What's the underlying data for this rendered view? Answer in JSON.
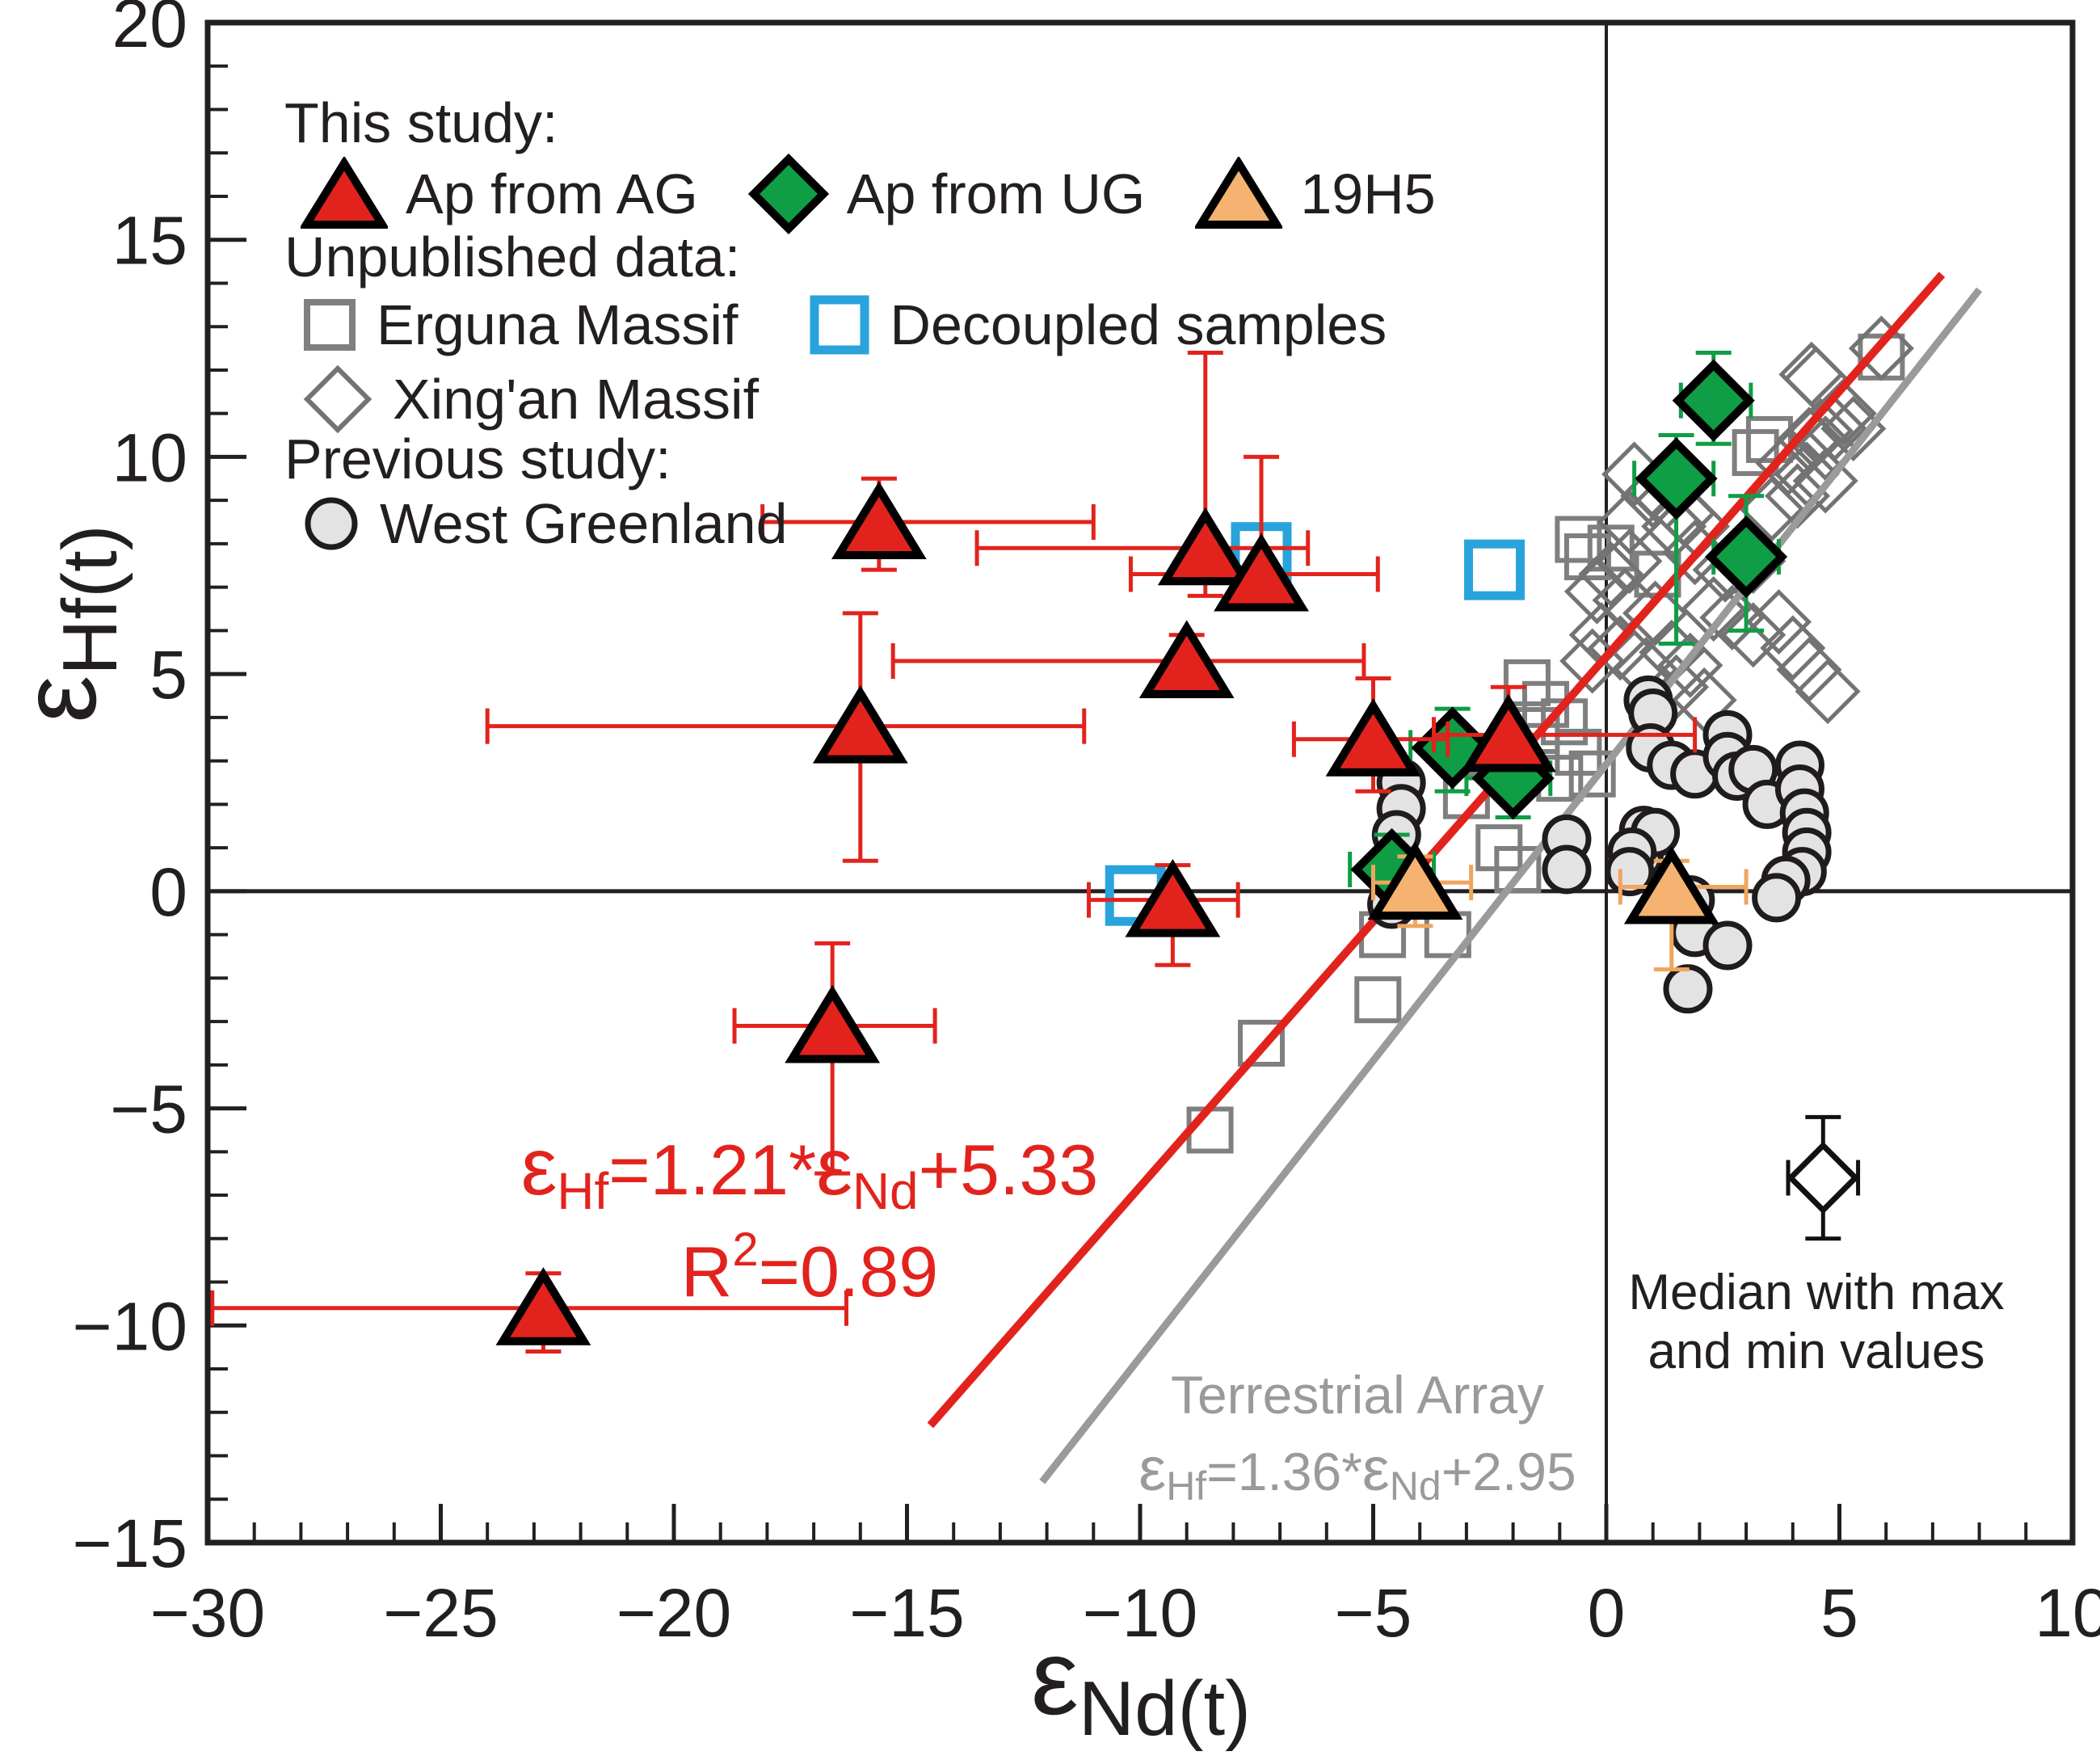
{
  "chart_data": {
    "type": "scatter",
    "axes": {
      "x": {
        "label_eps": "ε",
        "label_sub": "Nd(t)",
        "lim": [
          -30,
          10
        ],
        "ticks": [
          -30,
          -25,
          -20,
          -15,
          -10,
          -5,
          0,
          5,
          10
        ],
        "minor_step": 1
      },
      "y": {
        "label_eps": "ε",
        "label_sub": "Hf(t)",
        "lim": [
          -15,
          20
        ],
        "ticks": [
          -15,
          -10,
          -5,
          0,
          5,
          10,
          15,
          20
        ],
        "minor_step": 1
      },
      "zero_lines": true
    },
    "legend": {
      "section1": "This study:",
      "ap_ag": "Ap from AG",
      "ap_ug": "Ap from UG",
      "h19": "19H5",
      "section2": "Unpublished data:",
      "erguna": "Erguna Massif",
      "decoupled": "Decoupled samples",
      "xingan": "Xing'an Massif",
      "section3": "Previous study:",
      "west_greenland": "West Greenland"
    },
    "series": {
      "ap_ag": {
        "label": "Ap from AG",
        "marker": "triangle",
        "fill": "#e2231d",
        "stroke": "#000000",
        "stroke_width": 10,
        "error_color": "#e2231d",
        "points": [
          {
            "x": -22.8,
            "y": -9.6,
            "xlo": -29.9,
            "xhi": -16.3,
            "ylo": -10.6,
            "yhi": -8.8
          },
          {
            "x": -16.6,
            "y": -3.1,
            "xlo": -18.7,
            "xhi": -14.4,
            "ylo": -6.5,
            "yhi": -1.2
          },
          {
            "x": -15.6,
            "y": 8.5,
            "xlo": -18.1,
            "xhi": -11.0,
            "ylo": 7.4,
            "yhi": 9.5
          },
          {
            "x": -16.0,
            "y": 3.8,
            "xlo": -24.0,
            "xhi": -11.2,
            "ylo": 0.7,
            "yhi": 6.4
          },
          {
            "x": -8.6,
            "y": 7.9,
            "xlo": -13.5,
            "xhi": -6.4,
            "ylo": 6.8,
            "yhi": 12.4
          },
          {
            "x": -7.4,
            "y": 7.3,
            "xlo": -10.2,
            "xhi": -4.9,
            "ylo": 6.5,
            "yhi": 10.0
          },
          {
            "x": -9.0,
            "y": 5.3,
            "xlo": -15.3,
            "xhi": -5.2,
            "ylo": 4.8,
            "yhi": 5.9
          },
          {
            "x": -9.3,
            "y": -0.2,
            "xlo": -11.1,
            "xhi": -7.9,
            "ylo": -1.7,
            "yhi": 0.6
          },
          {
            "x": -5.0,
            "y": 3.5,
            "xlo": -6.7,
            "xhi": -3.4,
            "ylo": 2.3,
            "yhi": 4.9
          },
          {
            "x": -2.1,
            "y": 3.6,
            "xlo": -3.7,
            "xhi": 1.9,
            "ylo": 3.1,
            "yhi": 4.7
          }
        ]
      },
      "ap_ug": {
        "label": "Ap from UG",
        "marker": "diamond",
        "fill": "#0f9d45",
        "stroke": "#000000",
        "stroke_width": 10,
        "error_color": "#0f9d45",
        "points": [
          {
            "x": 2.3,
            "y": 11.3,
            "xlo": 1.6,
            "xhi": 3.1,
            "ylo": 10.3,
            "yhi": 12.4
          },
          {
            "x": 1.5,
            "y": 9.5,
            "xlo": 0.6,
            "xhi": 2.3,
            "ylo": 5.7,
            "yhi": 10.5
          },
          {
            "x": 3.0,
            "y": 7.7,
            "xlo": 2.3,
            "xhi": 3.7,
            "ylo": 6.0,
            "yhi": 9.1
          },
          {
            "x": -4.6,
            "y": 0.5,
            "xlo": -5.5,
            "xhi": -3.7,
            "ylo": -0.5,
            "yhi": 1.3
          },
          {
            "x": -3.3,
            "y": 3.3,
            "xlo": -4.2,
            "xhi": -2.5,
            "ylo": 2.3,
            "yhi": 4.2
          },
          {
            "x": -2.0,
            "y": 2.6,
            "xlo": -3.0,
            "xhi": -1.2,
            "ylo": 1.7,
            "yhi": 3.4
          }
        ]
      },
      "h19": {
        "label": "19H5",
        "marker": "triangle",
        "fill": "#f5b271",
        "stroke": "#000000",
        "stroke_width": 10,
        "error_color": "#f0a55e",
        "points": [
          {
            "x": -4.1,
            "y": 0.2,
            "xlo": -5.0,
            "xhi": -2.9,
            "ylo": -0.8,
            "yhi": 0.8
          },
          {
            "x": 1.4,
            "y": 0.1,
            "xlo": 0.3,
            "xhi": 3.0,
            "ylo": -1.8,
            "yhi": 0.7
          }
        ]
      },
      "erguna": {
        "label": "Erguna Massif",
        "marker": "square",
        "fill": "none",
        "stroke": "#7f7f7f",
        "stroke_width": 6,
        "points": [
          [
            -8.5,
            -5.5
          ],
          [
            -7.4,
            -3.5
          ],
          [
            -4.9,
            -2.5
          ],
          [
            -4.8,
            -1.0
          ],
          [
            -3.4,
            -1.0
          ],
          [
            -3.0,
            2.2
          ],
          [
            -2.3,
            1.0
          ],
          [
            -1.9,
            0.5
          ],
          [
            -1.7,
            4.8
          ],
          [
            -1.5,
            3.7
          ],
          [
            -1.3,
            4.3
          ],
          [
            -1.0,
            2.6
          ],
          [
            -0.9,
            3.9
          ],
          [
            -0.6,
            3.2
          ],
          [
            -0.6,
            8.1
          ],
          [
            -0.4,
            7.7
          ],
          [
            -0.3,
            2.7
          ],
          [
            0.1,
            7.9
          ],
          [
            1.1,
            7.3
          ],
          [
            3.2,
            10.1
          ],
          [
            3.5,
            10.4
          ],
          [
            5.9,
            12.3
          ]
        ]
      },
      "decoupled": {
        "label": "Decoupled samples",
        "marker": "square",
        "fill": "none",
        "stroke": "#29a3dc",
        "stroke_width": 11,
        "points": [
          [
            -7.4,
            7.8
          ],
          [
            -2.4,
            7.4
          ],
          [
            -10.1,
            -0.1
          ]
        ]
      },
      "xingan": {
        "label": "Xing'an Massif",
        "marker": "diamond",
        "fill": "none",
        "stroke": "#737373",
        "stroke_width": 5,
        "points": [
          [
            -0.3,
            5.3
          ],
          [
            -0.2,
            6.9
          ],
          [
            -0.1,
            5.9
          ],
          [
            0.1,
            7.3
          ],
          [
            0.3,
            5.6
          ],
          [
            0.4,
            6.7
          ],
          [
            0.5,
            7.6
          ],
          [
            0.5,
            8.5
          ],
          [
            0.6,
            9.6
          ],
          [
            0.85,
            5.1
          ],
          [
            1.0,
            9.1
          ],
          [
            1.05,
            6.4
          ],
          [
            1.1,
            9.2
          ],
          [
            1.4,
            5.5
          ],
          [
            1.45,
            8.4
          ],
          [
            1.5,
            4.7
          ],
          [
            1.65,
            8.7
          ],
          [
            1.8,
            5.2
          ],
          [
            1.9,
            7.8
          ],
          [
            1.95,
            8.4
          ],
          [
            2.1,
            4.4
          ],
          [
            2.3,
            6.5
          ],
          [
            2.55,
            7.4
          ],
          [
            2.7,
            6.3
          ],
          [
            3.15,
            5.9
          ],
          [
            3.15,
            7.6
          ],
          [
            3.55,
            8.8
          ],
          [
            3.7,
            6.2
          ],
          [
            3.9,
            9.85
          ],
          [
            4.0,
            5.6
          ],
          [
            4.1,
            9.1
          ],
          [
            4.35,
            5.1
          ],
          [
            4.35,
            10.4
          ],
          [
            4.4,
            11.9
          ],
          [
            4.3,
            9.6
          ],
          [
            4.5,
            11.8
          ],
          [
            4.6,
            10.6
          ],
          [
            4.7,
            9.45
          ],
          [
            4.7,
            10.2
          ],
          [
            4.75,
            4.6
          ],
          [
            4.9,
            10.65
          ],
          [
            5.1,
            11.0
          ],
          [
            5.3,
            10.65
          ],
          [
            5.9,
            12.5
          ]
        ]
      },
      "west_greenland": {
        "label": "West Greenland",
        "marker": "circle",
        "fill": "#e3e3e3",
        "stroke": "#201c1d",
        "stroke_width": 7,
        "points": [
          [
            -4.4,
            2.5
          ],
          [
            -4.4,
            1.9
          ],
          [
            -4.5,
            1.3
          ],
          [
            -4.6,
            -0.3
          ],
          [
            -0.85,
            1.2
          ],
          [
            -0.85,
            0.5
          ],
          [
            0.7,
            0.8
          ],
          [
            0.9,
            4.4
          ],
          [
            1.0,
            4.1
          ],
          [
            0.95,
            3.3
          ],
          [
            1.4,
            2.9
          ],
          [
            0.8,
            1.4
          ],
          [
            1.05,
            1.35
          ],
          [
            0.55,
            0.9
          ],
          [
            0.5,
            0.45
          ],
          [
            1.9,
            2.7
          ],
          [
            2.6,
            3.6
          ],
          [
            2.6,
            3.1
          ],
          [
            2.8,
            2.65
          ],
          [
            3.15,
            2.8
          ],
          [
            3.45,
            2.0
          ],
          [
            4.15,
            2.9
          ],
          [
            4.15,
            2.35
          ],
          [
            4.25,
            1.8
          ],
          [
            4.3,
            1.35
          ],
          [
            4.3,
            0.9
          ],
          [
            4.2,
            0.45
          ],
          [
            3.85,
            0.25
          ],
          [
            3.65,
            -0.15
          ],
          [
            1.8,
            -0.2
          ],
          [
            1.9,
            -0.95
          ],
          [
            2.6,
            -1.25
          ],
          [
            1.75,
            -2.25
          ]
        ]
      }
    },
    "fit_lines": [
      {
        "name": "regression-line",
        "color": "#e2231d",
        "width": 10,
        "x1": -14.5,
        "y1": -12.3,
        "x2": 7.2,
        "y2": 14.2
      },
      {
        "name": "terrestrial-array-line",
        "color": "#9a9a9a",
        "width": 9,
        "x1": -12.1,
        "y1": -13.6,
        "x2": 8.0,
        "y2": 13.85
      }
    ],
    "annotations": {
      "regression": {
        "eps1": "ε",
        "sub1": "Hf",
        "mid": "=1.21*",
        "eps2": "ε",
        "sub2": "Nd",
        "tail": "+5.33",
        "r2_base": "R",
        "r2_sup": "2",
        "r2_rest": "=0.89",
        "color": "#e2231d"
      },
      "terrestrial": {
        "title": "Terrestrial Array",
        "eps1": "ε",
        "sub1": "Hf",
        "mid": "=1.36*",
        "eps2": "ε",
        "sub2": "Nd",
        "tail": "+2.95",
        "color": "#9a9a9a"
      },
      "median_note": {
        "line1": "Median with max",
        "line2": "and min values",
        "symbol": {
          "x": 4.65,
          "y": -6.6,
          "xlo": 3.9,
          "xhi": 5.4,
          "ylo": -8.0,
          "yhi": -5.2
        }
      }
    }
  }
}
